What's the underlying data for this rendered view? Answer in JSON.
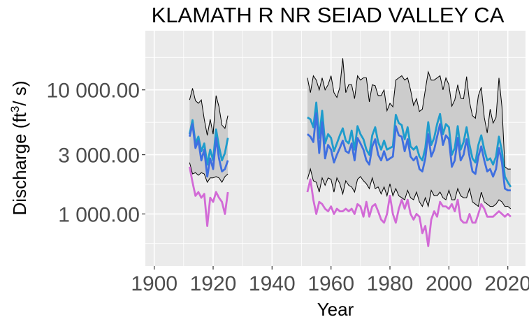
{
  "chart_data": {
    "type": "line",
    "title": "KLAMATH R NR SEIAD VALLEY CA",
    "xlabel": "Year",
    "ylabel": "Discharge (ft³/s)",
    "ylabel_parts": {
      "pre": "Discharge (ft",
      "sup": "3",
      "post": "/ s)"
    },
    "y_scale": "log10",
    "xlim": [
      1897,
      2026
    ],
    "ylim": [
      380,
      30000
    ],
    "x_ticks": [
      1900,
      1920,
      1940,
      1960,
      1980,
      2000,
      2020
    ],
    "x_tick_labels": [
      "1900",
      "1920",
      "1940",
      "1960",
      "1980",
      "2000",
      "2020"
    ],
    "y_ticks": [
      1000,
      3000,
      10000
    ],
    "y_tick_labels": [
      "1 000.00",
      "3 000.00",
      "10 000.00"
    ],
    "grid": true,
    "legend": "none",
    "colors": {
      "panel": "#ebebeb",
      "grid": "#ffffff",
      "band": "#cccccc",
      "band_edge": "#000000",
      "series_cyan": "#1e9ccc",
      "series_blue": "#3f6fe0",
      "series_magenta": "#d26ad6"
    },
    "segments": [
      {
        "years": [
          1912,
          1913,
          1914,
          1915,
          1916,
          1917,
          1918,
          1919,
          1920,
          1921,
          1922,
          1923,
          1924,
          1925
        ],
        "band_max": [
          8300,
          10300,
          8200,
          7800,
          8300,
          5800,
          4300,
          5800,
          4400,
          9000,
          7300,
          5200,
          4900,
          6200
        ],
        "band_min": [
          2600,
          2100,
          2150,
          2050,
          2150,
          2100,
          1800,
          1950,
          1950,
          2000,
          1950,
          1800,
          2000,
          2100
        ],
        "series": [
          {
            "name": "",
            "color": "#1e9ccc",
            "values": [
              4400,
              5700,
              3700,
              4200,
              3200,
              3700,
              2500,
              3300,
              2700,
              4800,
              3500,
              2700,
              3100,
              4100
            ]
          },
          {
            "name": "",
            "color": "#3f6fe0",
            "values": [
              4200,
              5300,
              3400,
              3900,
              2700,
              3300,
              2000,
              2800,
              2300,
              4100,
              2800,
              2200,
              2300,
              2700
            ]
          },
          {
            "name": "",
            "color": "#d26ad6",
            "values": [
              2400,
              1800,
              1400,
              1500,
              1350,
              1450,
              800,
              1350,
              1250,
              1500,
              1350,
              1250,
              1000,
              1500
            ]
          }
        ]
      },
      {
        "years": [
          1952,
          1953,
          1954,
          1955,
          1956,
          1957,
          1958,
          1959,
          1960,
          1961,
          1962,
          1963,
          1964,
          1965,
          1966,
          1967,
          1968,
          1969,
          1970,
          1971,
          1972,
          1973,
          1974,
          1975,
          1976,
          1977,
          1978,
          1979,
          1980,
          1981,
          1982,
          1983,
          1984,
          1985,
          1986,
          1987,
          1988,
          1989,
          1990,
          1991,
          1992,
          1993,
          1994,
          1995,
          1996,
          1997,
          1998,
          1999,
          2000,
          2001,
          2002,
          2003,
          2004,
          2005,
          2006,
          2007,
          2008,
          2009,
          2010,
          2011,
          2012,
          2013,
          2014,
          2015,
          2016,
          2017,
          2018,
          2019,
          2020,
          2021
        ],
        "band_max": [
          12500,
          9500,
          13000,
          12000,
          10000,
          12500,
          10000,
          11000,
          13000,
          9500,
          8700,
          10500,
          18000,
          9500,
          11000,
          11000,
          8500,
          13000,
          12000,
          12500,
          12500,
          8000,
          11000,
          10800,
          9000,
          9000,
          10000,
          6800,
          7800,
          7300,
          12000,
          12500,
          13000,
          12000,
          12500,
          10000,
          7500,
          8500,
          6700,
          7000,
          10000,
          14000,
          12000,
          12000,
          12500,
          13000,
          10000,
          12500,
          11000,
          7400,
          8300,
          11000,
          8600,
          8500,
          12800,
          8000,
          6200,
          5900,
          9000,
          10500,
          6000,
          4500,
          7000,
          5400,
          6000,
          12500,
          7300,
          2400,
          2300,
          2300
        ],
        "band_min": [
          1900,
          2300,
          1850,
          1800,
          1500,
          1950,
          1700,
          1950,
          1900,
          1500,
          1950,
          1750,
          1450,
          1850,
          1700,
          1650,
          1500,
          1900,
          2000,
          1850,
          1750,
          1600,
          1950,
          1600,
          1650,
          1450,
          1650,
          1400,
          1750,
          1400,
          1600,
          1400,
          1350,
          1300,
          1550,
          1350,
          1300,
          1500,
          1250,
          1150,
          1350,
          1150,
          1550,
          1400,
          1400,
          1500,
          1350,
          1300,
          1550,
          1300,
          1300,
          1600,
          1400,
          1350,
          1350,
          1600,
          1250,
          1200,
          1150,
          1500,
          1250,
          1200,
          1150,
          1150,
          1200,
          1300,
          1250,
          1150,
          1150,
          1100
        ],
        "series": [
          {
            "name": "",
            "color": "#1e9ccc",
            "values": [
              6000,
              5800,
              5000,
              7900,
              4100,
              6800,
              3700,
              4400,
              4100,
              3200,
              3700,
              4300,
              4900,
              3900,
              3700,
              4700,
              3300,
              5100,
              4400,
              4000,
              3300,
              3000,
              4300,
              5000,
              3800,
              3300,
              3900,
              3300,
              3400,
              3500,
              6300,
              5400,
              5200,
              4000,
              5000,
              3500,
              3300,
              3500,
              2900,
              2700,
              3400,
              5500,
              3600,
              4100,
              5300,
              6400,
              4400,
              5300,
              5000,
              3000,
              3400,
              5100,
              3300,
              3800,
              5000,
              3600,
              2800,
              2600,
              3600,
              4300,
              3300,
              2700,
              2800,
              2500,
              2900,
              4200,
              3200,
              2000,
              1800,
              1650
            ]
          },
          {
            "name": "",
            "color": "#3f6fe0",
            "values": [
              4400,
              4200,
              3800,
              6500,
              3100,
              5500,
              2800,
              3600,
              3300,
              2600,
              3000,
              3400,
              3900,
              3200,
              3100,
              3700,
              2700,
              4100,
              3700,
              3300,
              2700,
              2500,
              3500,
              4000,
              3000,
              2700,
              3200,
              2700,
              2800,
              2900,
              5100,
              4300,
              4200,
              3200,
              4000,
              2900,
              2700,
              2900,
              2300,
              2200,
              2800,
              4400,
              2900,
              3300,
              4200,
              5300,
              3600,
              4300,
              4000,
              2400,
              2700,
              4100,
              2700,
              3000,
              4000,
              2900,
              2200,
              2100,
              2900,
              3500,
              2700,
              2200,
              2300,
              2000,
              2300,
              3400,
              2600,
              1600,
              1550,
              1550
            ]
          },
          {
            "name": "",
            "color": "#d26ad6",
            "values": [
              1500,
              1900,
              1300,
              1000,
              1250,
              1200,
              1100,
              1050,
              1150,
              1000,
              1100,
              1050,
              1050,
              1100,
              1050,
              1100,
              1000,
              1200,
              1150,
              950,
              1250,
              950,
              1150,
              1200,
              1050,
              900,
              850,
              1000,
              1400,
              1000,
              850,
              1100,
              1300,
              1100,
              1300,
              1000,
              900,
              1000,
              950,
              700,
              800,
              550,
              900,
              1050,
              950,
              1250,
              1150,
              1150,
              1100,
              1200,
              1050,
              1300,
              900,
              850,
              850,
              1000,
              850,
              850,
              1000,
              1200,
              1100,
              950,
              950,
              950,
              1000,
              1050,
              1000,
              950,
              1000,
              950
            ]
          }
        ]
      }
    ]
  }
}
